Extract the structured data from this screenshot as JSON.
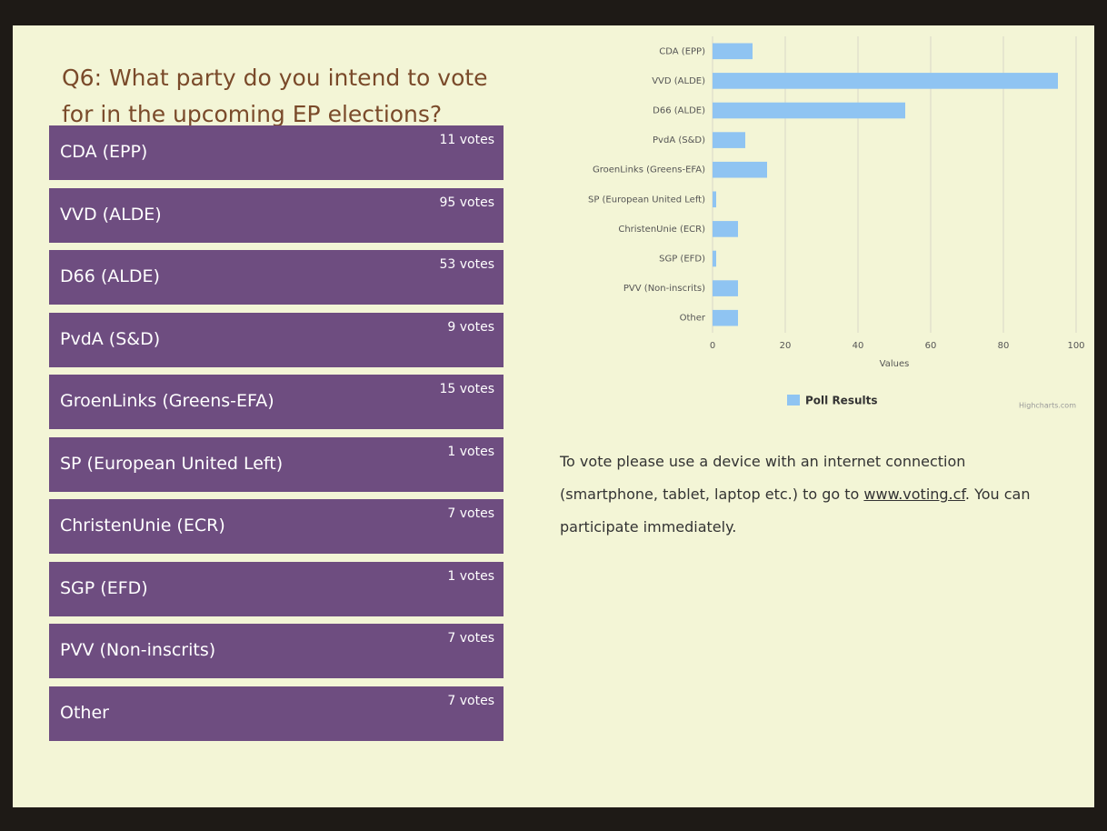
{
  "question": "Q6: What party do you intend to vote for in the upcoming EP elections?",
  "options": [
    {
      "label": "CDA (EPP)",
      "votes": "11 votes"
    },
    {
      "label": "VVD (ALDE)",
      "votes": "95 votes"
    },
    {
      "label": "D66 (ALDE)",
      "votes": "53 votes"
    },
    {
      "label": "PvdA (S&D)",
      "votes": "9 votes"
    },
    {
      "label": "GroenLinks (Greens-EFA)",
      "votes": "15 votes"
    },
    {
      "label": "SP (European United Left)",
      "votes": "1 votes"
    },
    {
      "label": "ChristenUnie (ECR)",
      "votes": "7 votes"
    },
    {
      "label": "SGP (EFD)",
      "votes": "1 votes"
    },
    {
      "label": "PVV (Non-inscrits)",
      "votes": "7 votes"
    },
    {
      "label": "Other",
      "votes": "7 votes"
    }
  ],
  "chart_data": {
    "type": "bar",
    "orientation": "horizontal",
    "categories": [
      "CDA (EPP)",
      "VVD (ALDE)",
      "D66 (ALDE)",
      "PvdA (S&D)",
      "GroenLinks (Greens-EFA)",
      "SP (European United Left)",
      "ChristenUnie (ECR)",
      "SGP (EFD)",
      "PVV (Non-inscrits)",
      "Other"
    ],
    "series": [
      {
        "name": "Poll Results",
        "color": "#8fc4f2",
        "values": [
          11,
          95,
          53,
          9,
          15,
          1,
          7,
          1,
          7,
          7
        ]
      }
    ],
    "xlabel": "Values",
    "xlim": [
      0,
      100
    ],
    "xticks": [
      0,
      20,
      40,
      60,
      80,
      100
    ],
    "grid": true,
    "credit": "Highcharts.com"
  },
  "instructions": {
    "before": "To vote please use a device with an internet connection (smartphone, tablet, laptop etc.) to go to",
    "link": "www.voting.cf",
    "after": ". You can participate immediately."
  }
}
